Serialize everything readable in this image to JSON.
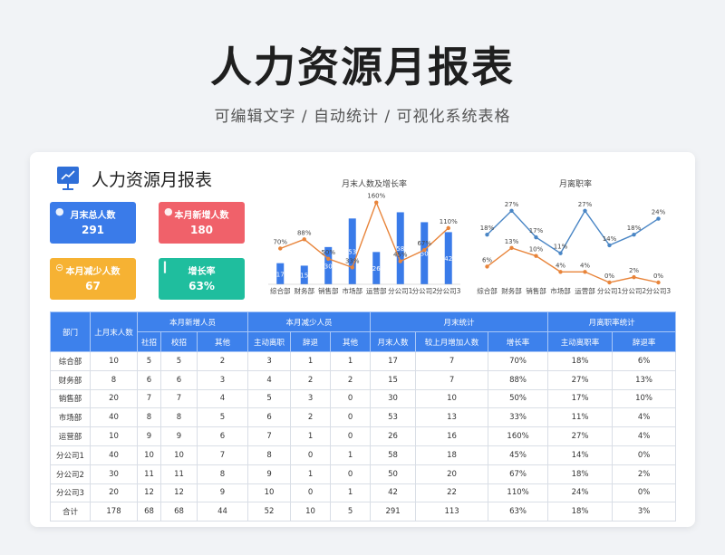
{
  "page": {
    "title": "人力资源月报表",
    "subtitle": "可编辑文字  /  自动统计  /  可视化系统表格"
  },
  "card": {
    "title": "人力资源月报表"
  },
  "kpis": [
    {
      "label": "月末总人数",
      "value": "291",
      "color": "#3a7be9",
      "icon": "person-icon"
    },
    {
      "label": "本月新增人数",
      "value": "180",
      "color": "#f0616a",
      "icon": "person-add-icon"
    },
    {
      "label": "本月减少人数",
      "value": "67",
      "color": "#f6b233",
      "icon": "minus-circle-icon"
    },
    {
      "label": "增长率",
      "value": "63%",
      "color": "#1fbe9e",
      "icon": "bar-chart-icon"
    }
  ],
  "chart_data": [
    {
      "type": "bar",
      "title": "月末人数及增长率",
      "categories": [
        "综合部",
        "财务部",
        "销售部",
        "市场部",
        "运营部",
        "分公司1",
        "分公司2",
        "分公司3"
      ],
      "series": [
        {
          "type": "bar",
          "values": [
            17,
            15,
            30,
            53,
            26,
            58,
            50,
            42
          ],
          "color": "#3a7be9"
        },
        {
          "type": "line",
          "values": [
            70,
            88,
            50,
            33,
            160,
            45,
            67,
            110
          ],
          "labels": [
            "70%",
            "88%",
            "50%",
            "33%",
            "160%",
            "45%",
            "67%",
            "110%"
          ],
          "color": "#e8843a"
        }
      ],
      "legend": false,
      "grid": false
    },
    {
      "type": "line",
      "title": "月离职率",
      "categories": [
        "综合部",
        "财务部",
        "销售部",
        "市场部",
        "运营部",
        "分公司1",
        "分公司2",
        "分公司3"
      ],
      "series": [
        {
          "values": [
            18,
            27,
            17,
            11,
            27,
            14,
            18,
            24
          ],
          "labels": [
            "18%",
            "27%",
            "17%",
            "11%",
            "27%",
            "14%",
            "18%",
            "24%"
          ],
          "color": "#4a86c5"
        },
        {
          "values": [
            6,
            13,
            10,
            4,
            4,
            0,
            2,
            0
          ],
          "labels": [
            "6%",
            "13%",
            "10%",
            "4%",
            "4%",
            "0%",
            "2%",
            "0%"
          ],
          "color": "#e8843a"
        }
      ],
      "legend": false,
      "grid": false
    }
  ],
  "table": {
    "h": {
      "dept": "部门",
      "last": "上月末人数",
      "new": "本月新增人员",
      "reduce": "本月减少人员",
      "end": "月末统计",
      "turnover": "月离职率统计",
      "social": "社招",
      "campus": "校招",
      "other1": "其他",
      "active": "主动离职",
      "dismiss": "辞退",
      "other2": "其他",
      "endcount": "月末人数",
      "incr": "较上月增加人数",
      "growth": "增长率",
      "activerate": "主动离职率",
      "dismissrate": "辞退率"
    },
    "rows": [
      [
        "综合部",
        "10",
        "5",
        "5",
        "2",
        "3",
        "1",
        "1",
        "17",
        "7",
        "70%",
        "18%",
        "6%"
      ],
      [
        "财务部",
        "8",
        "6",
        "6",
        "3",
        "4",
        "2",
        "2",
        "15",
        "7",
        "88%",
        "27%",
        "13%"
      ],
      [
        "销售部",
        "20",
        "7",
        "7",
        "4",
        "5",
        "3",
        "0",
        "30",
        "10",
        "50%",
        "17%",
        "10%"
      ],
      [
        "市场部",
        "40",
        "8",
        "8",
        "5",
        "6",
        "2",
        "0",
        "53",
        "13",
        "33%",
        "11%",
        "4%"
      ],
      [
        "运营部",
        "10",
        "9",
        "9",
        "6",
        "7",
        "1",
        "0",
        "26",
        "16",
        "160%",
        "27%",
        "4%"
      ],
      [
        "分公司1",
        "40",
        "10",
        "10",
        "7",
        "8",
        "0",
        "1",
        "58",
        "18",
        "45%",
        "14%",
        "0%"
      ],
      [
        "分公司2",
        "30",
        "11",
        "11",
        "8",
        "9",
        "1",
        "0",
        "50",
        "20",
        "67%",
        "18%",
        "2%"
      ],
      [
        "分公司3",
        "20",
        "12",
        "12",
        "9",
        "10",
        "0",
        "1",
        "42",
        "22",
        "110%",
        "24%",
        "0%"
      ],
      [
        "合计",
        "178",
        "68",
        "68",
        "44",
        "52",
        "10",
        "5",
        "291",
        "113",
        "63%",
        "18%",
        "3%"
      ]
    ]
  }
}
